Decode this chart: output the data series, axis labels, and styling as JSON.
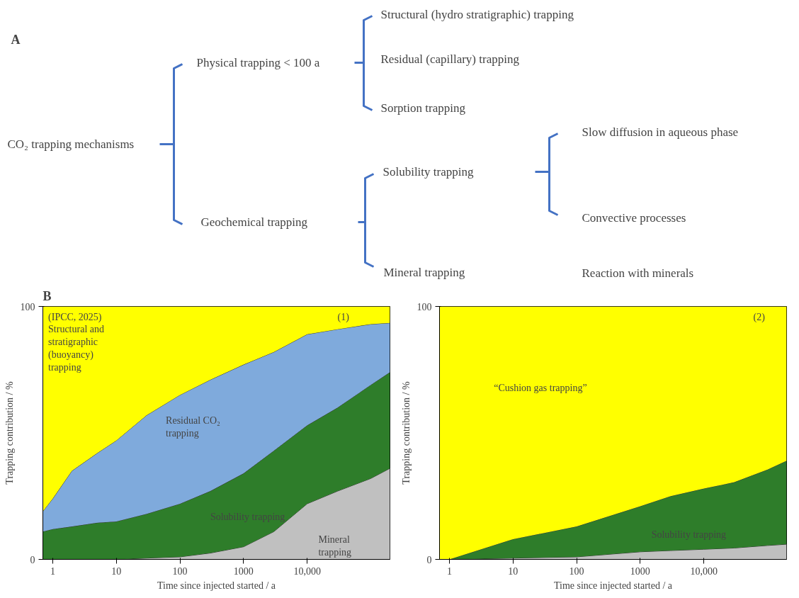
{
  "chart_data": [
    {
      "type": "other",
      "title": "A",
      "annotations": [
        "CO₂ trapping mechanisms",
        "Physical trapping < 100 a",
        "Geochemical trapping",
        "Structural (hydro stratigraphic) trapping",
        "Residual (capillary) trapping",
        "Sorption trapping",
        "Solubility trapping",
        "Mineral trapping",
        "Slow diffusion in aqueous phase",
        "Convective processes",
        "Reaction with minerals"
      ]
    },
    {
      "type": "area",
      "stacked": true,
      "title": "B",
      "xlabel": "Time since injected started / a",
      "ylabel": "Trapping contribution / %",
      "log": "x",
      "grid": false,
      "x": [
        0.7,
        1,
        2,
        5,
        10,
        30,
        100,
        300,
        1000,
        3000,
        10000,
        30000,
        100000,
        200000
      ],
      "xlim": [
        0.7,
        200000
      ],
      "ylim": [
        0,
        100
      ],
      "yticks": [
        0,
        100
      ],
      "xticks": [
        1,
        10,
        100,
        1000,
        {
          "value": 10000,
          "label": "10,000"
        }
      ],
      "series": [
        {
          "color": "#c0c0c0",
          "values": [
            0,
            0,
            0,
            0,
            0,
            0.5,
            1,
            2.5,
            5,
            11,
            22,
            27,
            32,
            36
          ]
        },
        {
          "color": "#2e7d2a",
          "values": [
            11,
            12,
            13,
            14.5,
            15,
            17.5,
            21,
            24.5,
            29,
            32,
            31,
            33,
            37,
            38
          ]
        },
        {
          "color": "#7faadc",
          "values": [
            8,
            12,
            22,
            27.5,
            32,
            39,
            43,
            44,
            43,
            39,
            36,
            31,
            24,
            19.5
          ]
        },
        {
          "color": "#ffff00",
          "values": [
            81,
            76,
            65,
            58,
            53,
            43,
            35,
            29,
            23,
            18,
            11,
            9,
            7,
            6.5
          ]
        }
      ],
      "annotations": [
        "(IPCC, 2025)",
        "Structural and stratigraphic (buoyancy) trapping",
        "(1)",
        "Residual CO₂ trapping",
        "Solubility trapping",
        "Mineral trapping"
      ]
    },
    {
      "type": "area",
      "stacked": true,
      "xlabel": "Time since injected started / a",
      "ylabel": "Trapping contribution / %",
      "log": "x",
      "grid": false,
      "x": [
        0.7,
        1,
        10,
        100,
        1000,
        3000,
        10000,
        30000,
        100000,
        200000
      ],
      "xlim": [
        0.7,
        200000
      ],
      "ylim": [
        0,
        100
      ],
      "yticks": [
        0,
        100
      ],
      "xticks": [
        1,
        10,
        100,
        1000,
        {
          "value": 10000,
          "label": "10,000"
        }
      ],
      "series": [
        {
          "color": "#c0c0c0",
          "values": [
            0,
            0,
            0.5,
            1,
            3,
            3.5,
            4,
            4.5,
            5.5,
            6
          ]
        },
        {
          "color": "#2e7d2a",
          "values": [
            0,
            0,
            7.5,
            12,
            18,
            21.5,
            24,
            26,
            30,
            33
          ]
        },
        {
          "color": "#ffff00",
          "values": [
            100,
            100,
            92,
            87,
            79,
            75,
            72,
            69.5,
            64.5,
            61
          ]
        }
      ],
      "annotations": [
        "(2)",
        "“Cushion gas trapping”",
        "Solubility trapping"
      ]
    }
  ]
}
